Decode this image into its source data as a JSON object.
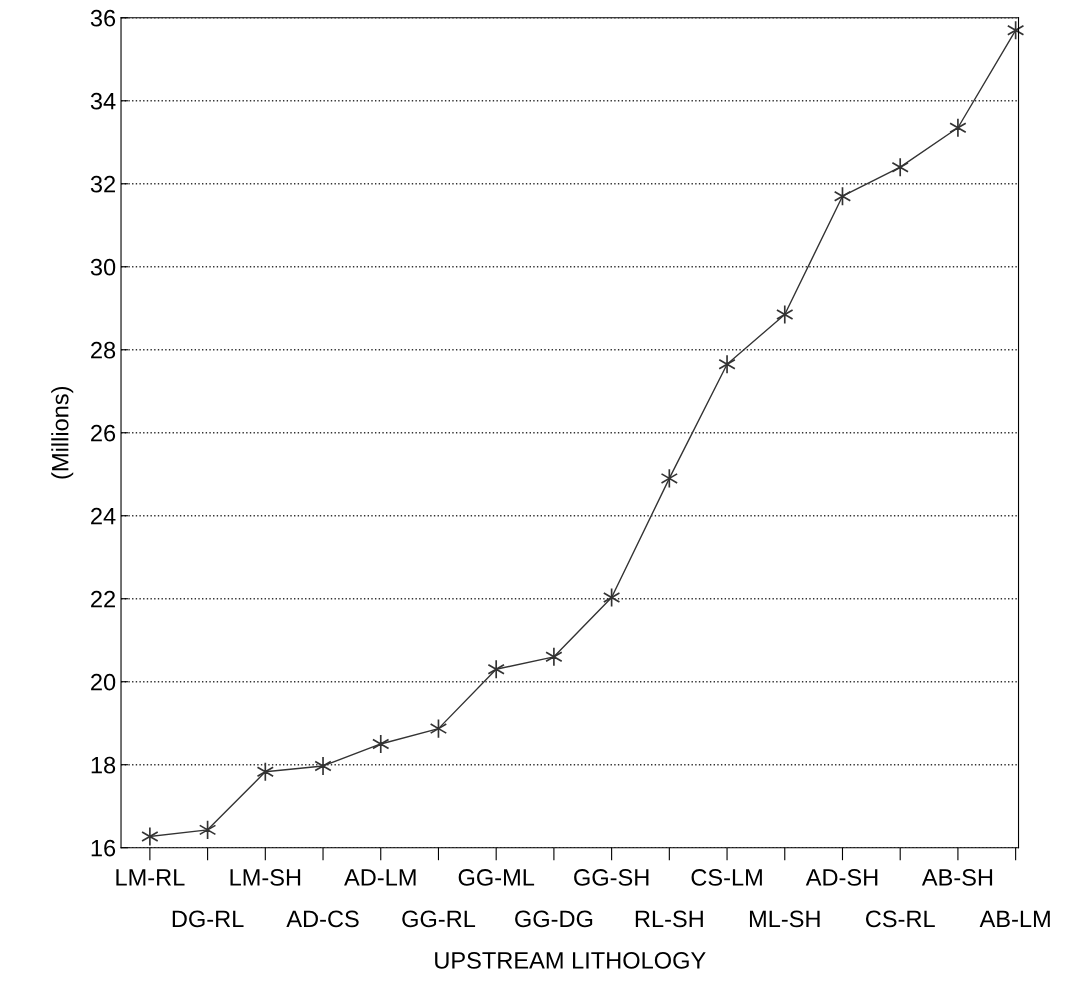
{
  "chart_data": {
    "type": "line",
    "xlabel": "UPSTREAM LITHOLOGY",
    "ylabel": "(Millions)",
    "categories": [
      "LM-RL",
      "DG-RL",
      "LM-SH",
      "AD-CS",
      "AD-LM",
      "GG-RL",
      "GG-ML",
      "GG-DG",
      "GG-SH",
      "RL-SH",
      "CS-LM",
      "ML-SH",
      "AD-SH",
      "CS-RL",
      "AB-SH",
      "AB-LM"
    ],
    "series": [
      {
        "color": "#333333",
        "values": [
          16.27,
          16.43,
          17.83,
          17.97,
          18.5,
          18.87,
          20.3,
          20.6,
          22.03,
          24.9,
          27.65,
          28.85,
          31.7,
          32.4,
          33.35,
          35.7
        ]
      }
    ],
    "ylim": [
      16,
      36
    ],
    "yticks": [
      16,
      18,
      20,
      22,
      24,
      26,
      28,
      30,
      32,
      34,
      36
    ],
    "grid": "y",
    "marker": "cross",
    "line_style": "solid"
  }
}
